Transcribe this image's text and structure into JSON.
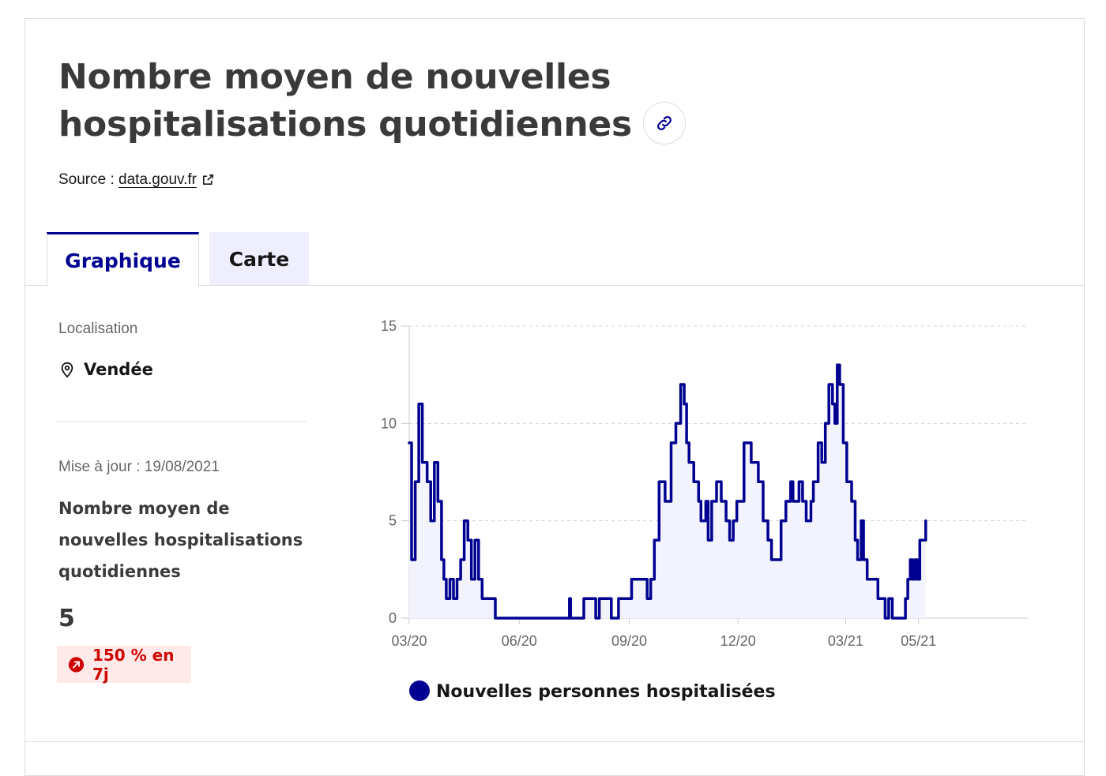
{
  "header": {
    "title": "Nombre moyen de nouvelles hospitalisations quotidiennes",
    "link_icon": "link-icon",
    "source_prefix": "Source : ",
    "source_link": "data.gouv.fr",
    "source_icon": "external-link-icon"
  },
  "tabs": [
    {
      "label": "Graphique",
      "active": true
    },
    {
      "label": "Carte",
      "active": false
    }
  ],
  "sidebar": {
    "location_label": "Localisation",
    "location_icon": "map-pin-icon",
    "location_value": "Vendée",
    "updated": "Mise à jour : 19/08/2021",
    "indicator_label": "Nombre moyen de nouvelles hospitalisations quotidiennes",
    "indicator_value": "5",
    "trend_icon": "arrow-up-right-icon",
    "trend_text": "150 % en 7j"
  },
  "colors": {
    "accent": "#000091",
    "fill": "#f3f3fe",
    "badge_bg": "#ffe9e9",
    "badge_text": "#ce0500"
  },
  "chart_data": {
    "type": "line",
    "title": "",
    "xlabel": "",
    "ylabel": "",
    "ylim": [
      0,
      15
    ],
    "xlim": [
      "2020-03-19",
      "2021-08-19"
    ],
    "yticks": [
      0,
      5,
      10,
      15
    ],
    "xticks": [
      {
        "date": "2020-03-19",
        "label": "03/20"
      },
      {
        "date": "2020-06-19",
        "label": "06/20"
      },
      {
        "date": "2020-09-19",
        "label": "09/20"
      },
      {
        "date": "2020-12-19",
        "label": "12/20"
      },
      {
        "date": "2021-03-19",
        "label": "03/21"
      },
      {
        "date": "2021-05-19",
        "label": "05/21"
      }
    ],
    "grid": true,
    "legend": "bottom",
    "series": [
      {
        "name": "Nouvelles personnes hospitalisées",
        "color": "#000091",
        "points": [
          [
            "2020-03-19",
            9
          ],
          [
            "2020-03-21",
            3
          ],
          [
            "2020-03-24",
            7
          ],
          [
            "2020-03-27",
            11
          ],
          [
            "2020-03-30",
            8
          ],
          [
            "2020-04-03",
            7
          ],
          [
            "2020-04-06",
            5
          ],
          [
            "2020-04-09",
            8
          ],
          [
            "2020-04-12",
            6
          ],
          [
            "2020-04-15",
            3
          ],
          [
            "2020-04-17",
            2
          ],
          [
            "2020-04-19",
            1
          ],
          [
            "2020-04-22",
            2
          ],
          [
            "2020-04-25",
            1
          ],
          [
            "2020-04-28",
            2
          ],
          [
            "2020-05-01",
            3
          ],
          [
            "2020-05-04",
            5
          ],
          [
            "2020-05-07",
            4
          ],
          [
            "2020-05-10",
            2
          ],
          [
            "2020-05-13",
            4
          ],
          [
            "2020-05-16",
            2
          ],
          [
            "2020-05-19",
            1
          ],
          [
            "2020-05-28",
            1
          ],
          [
            "2020-05-30",
            0
          ],
          [
            "2020-07-30",
            0
          ],
          [
            "2020-07-31",
            1
          ],
          [
            "2020-08-01",
            0
          ],
          [
            "2020-08-10",
            0
          ],
          [
            "2020-08-12",
            1
          ],
          [
            "2020-08-20",
            1
          ],
          [
            "2020-08-22",
            0
          ],
          [
            "2020-08-25",
            1
          ],
          [
            "2020-09-02",
            1
          ],
          [
            "2020-09-04",
            0
          ],
          [
            "2020-09-08",
            0
          ],
          [
            "2020-09-10",
            1
          ],
          [
            "2020-09-18",
            1
          ],
          [
            "2020-09-21",
            2
          ],
          [
            "2020-10-01",
            2
          ],
          [
            "2020-10-04",
            1
          ],
          [
            "2020-10-07",
            2
          ],
          [
            "2020-10-10",
            4
          ],
          [
            "2020-10-14",
            7
          ],
          [
            "2020-10-19",
            6
          ],
          [
            "2020-10-24",
            9
          ],
          [
            "2020-10-28",
            10
          ],
          [
            "2020-11-01",
            12
          ],
          [
            "2020-11-04",
            11
          ],
          [
            "2020-11-06",
            9
          ],
          [
            "2020-11-08",
            8
          ],
          [
            "2020-11-12",
            7
          ],
          [
            "2020-11-16",
            6
          ],
          [
            "2020-11-18",
            5
          ],
          [
            "2020-11-22",
            6
          ],
          [
            "2020-11-24",
            4
          ],
          [
            "2020-11-27",
            6
          ],
          [
            "2020-12-01",
            7
          ],
          [
            "2020-12-05",
            6
          ],
          [
            "2020-12-09",
            5
          ],
          [
            "2020-12-12",
            4
          ],
          [
            "2020-12-15",
            5
          ],
          [
            "2020-12-18",
            6
          ],
          [
            "2020-12-21",
            6
          ],
          [
            "2020-12-24",
            9
          ],
          [
            "2020-12-30",
            8
          ],
          [
            "2021-01-02",
            8
          ],
          [
            "2021-01-05",
            7
          ],
          [
            "2021-01-09",
            5
          ],
          [
            "2021-01-13",
            4
          ],
          [
            "2021-01-16",
            3
          ],
          [
            "2021-01-21",
            3
          ],
          [
            "2021-01-24",
            5
          ],
          [
            "2021-01-28",
            6
          ],
          [
            "2021-02-01",
            7
          ],
          [
            "2021-02-03",
            6
          ],
          [
            "2021-02-08",
            7
          ],
          [
            "2021-02-11",
            6
          ],
          [
            "2021-02-14",
            5
          ],
          [
            "2021-02-18",
            6
          ],
          [
            "2021-02-20",
            7
          ],
          [
            "2021-02-24",
            9
          ],
          [
            "2021-02-27",
            8
          ],
          [
            "2021-03-02",
            10
          ],
          [
            "2021-03-05",
            12
          ],
          [
            "2021-03-08",
            11
          ],
          [
            "2021-03-10",
            10
          ],
          [
            "2021-03-12",
            13
          ],
          [
            "2021-03-14",
            12
          ],
          [
            "2021-03-17",
            9
          ],
          [
            "2021-03-20",
            7
          ],
          [
            "2021-03-24",
            6
          ],
          [
            "2021-03-27",
            4
          ],
          [
            "2021-03-29",
            3
          ],
          [
            "2021-04-01",
            5
          ],
          [
            "2021-04-03",
            3
          ],
          [
            "2021-04-06",
            2
          ],
          [
            "2021-04-09",
            2
          ],
          [
            "2021-04-12",
            2
          ],
          [
            "2021-04-15",
            1
          ],
          [
            "2021-04-18",
            1
          ],
          [
            "2021-04-21",
            0
          ],
          [
            "2021-04-24",
            1
          ],
          [
            "2021-04-27",
            0
          ],
          [
            "2021-05-03",
            0
          ],
          [
            "2021-05-05",
            0
          ],
          [
            "2021-05-08",
            1
          ],
          [
            "2021-05-10",
            2
          ],
          [
            "2021-05-12",
            3
          ],
          [
            "2021-05-14",
            2
          ],
          [
            "2021-05-16",
            3
          ],
          [
            "2021-05-18",
            2
          ],
          [
            "2021-05-20",
            4
          ],
          [
            "2021-05-23",
            4
          ],
          [
            "2021-05-25",
            5
          ]
        ]
      }
    ]
  }
}
